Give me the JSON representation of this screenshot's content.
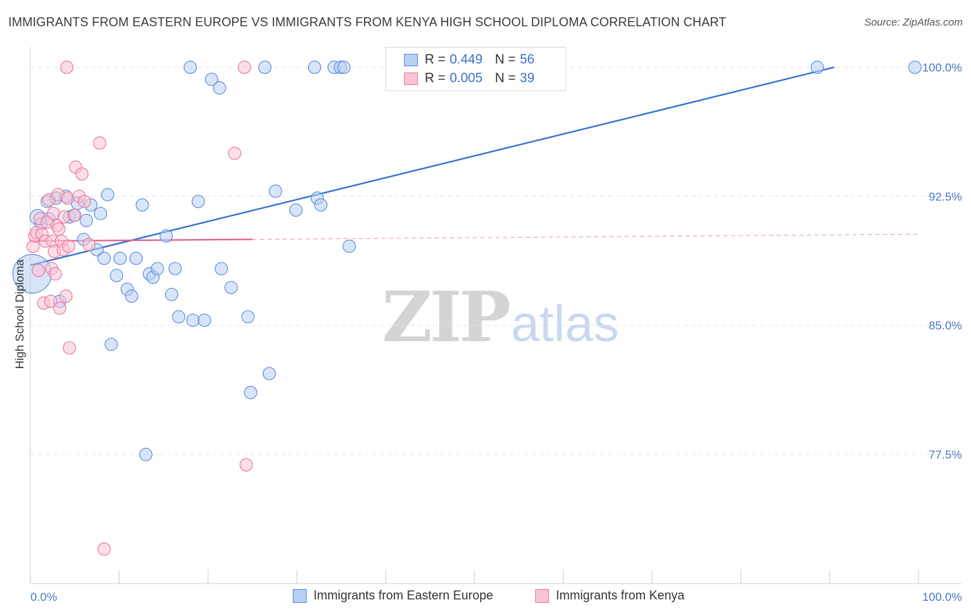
{
  "title": "IMMIGRANTS FROM EASTERN EUROPE VS IMMIGRANTS FROM KENYA HIGH SCHOOL DIPLOMA CORRELATION CHART",
  "source": "Source: ZipAtlas.com",
  "watermark": {
    "zip": "ZIP",
    "atlas": "atlas"
  },
  "legend": {
    "rows": [
      {
        "r_label": "R =",
        "r_value": "0.449",
        "n_label": "N =",
        "n_value": "56"
      },
      {
        "r_label": "R =",
        "r_value": "0.005",
        "n_label": "N =",
        "n_value": "39"
      }
    ]
  },
  "bottom_legend": [
    "Immigrants from Eastern Europe",
    "Immigrants from Kenya"
  ],
  "colors": {
    "blue_fill": "#b8d0f4",
    "blue_stroke": "#5a8ad8",
    "blue_line": "#3070d0",
    "pink_fill": "#f9c3d4",
    "pink_stroke": "#e6779b",
    "pink_line": "#e0668f",
    "tick_text": "#4a78c8",
    "grid": "#e4e4e4"
  },
  "chart_data": {
    "type": "scatter",
    "title": "IMMIGRANTS FROM EASTERN EUROPE VS IMMIGRANTS FROM KENYA HIGH SCHOOL DIPLOMA CORRELATION CHART",
    "xlabel": "",
    "ylabel": "High School Diploma",
    "xlim": [
      0,
      100
    ],
    "ylim": [
      70.0,
      100.7
    ],
    "x_tick_labels": [
      "0.0%",
      "100.0%"
    ],
    "y_ticks": [
      {
        "value": 100.0,
        "label": "100.0%"
      },
      {
        "value": 92.5,
        "label": "92.5%"
      },
      {
        "value": 85.0,
        "label": "85.0%"
      },
      {
        "value": 77.5,
        "label": "77.5%"
      }
    ],
    "series": [
      {
        "name": "Immigrants from Eastern Europe",
        "color": "blue",
        "trend": {
          "x1": 0,
          "y1": 88.5,
          "x2": 90.5,
          "y2": 100.0,
          "dashed_to": null
        },
        "points": [
          [
            0.2,
            88.0,
            28
          ],
          [
            0.8,
            91.3,
            11
          ],
          [
            1.2,
            90.9,
            9
          ],
          [
            1.9,
            92.2,
            9
          ],
          [
            2.1,
            91.2,
            9
          ],
          [
            2.9,
            92.4,
            9
          ],
          [
            3.3,
            86.4,
            9
          ],
          [
            4.0,
            92.5,
            9
          ],
          [
            4.4,
            91.3,
            9
          ],
          [
            4.9,
            91.4,
            9
          ],
          [
            5.3,
            92.1,
            9
          ],
          [
            6.0,
            90.0,
            9
          ],
          [
            6.3,
            91.1,
            9
          ],
          [
            6.8,
            92.0,
            9
          ],
          [
            7.5,
            89.4,
            9
          ],
          [
            7.9,
            91.5,
            9
          ],
          [
            8.3,
            88.9,
            9
          ],
          [
            8.7,
            92.6,
            9
          ],
          [
            9.1,
            83.9,
            9
          ],
          [
            9.7,
            87.9,
            9
          ],
          [
            10.1,
            88.9,
            9
          ],
          [
            10.9,
            87.1,
            9
          ],
          [
            11.4,
            86.7,
            9
          ],
          [
            11.9,
            88.9,
            9
          ],
          [
            12.6,
            92.0,
            9
          ],
          [
            13.0,
            77.5,
            9
          ],
          [
            13.4,
            88.0,
            9
          ],
          [
            13.8,
            87.8,
            9
          ],
          [
            14.3,
            88.3,
            9
          ],
          [
            15.3,
            90.2,
            9
          ],
          [
            15.9,
            86.8,
            9
          ],
          [
            16.3,
            88.3,
            9
          ],
          [
            16.7,
            85.5,
            9
          ],
          [
            18.0,
            100.0,
            9
          ],
          [
            18.3,
            85.3,
            9
          ],
          [
            18.9,
            92.2,
            9
          ],
          [
            19.6,
            85.3,
            9
          ],
          [
            20.4,
            99.3,
            9
          ],
          [
            21.3,
            98.8,
            9
          ],
          [
            21.5,
            88.3,
            9
          ],
          [
            22.6,
            87.2,
            9
          ],
          [
            24.5,
            85.5,
            9
          ],
          [
            24.8,
            81.1,
            9
          ],
          [
            26.4,
            100.0,
            9
          ],
          [
            27.6,
            92.8,
            9
          ],
          [
            26.9,
            82.2,
            9
          ],
          [
            29.9,
            91.7,
            9
          ],
          [
            32.0,
            100.0,
            9
          ],
          [
            32.3,
            92.4,
            9
          ],
          [
            32.7,
            92.0,
            9
          ],
          [
            34.2,
            100.0,
            9
          ],
          [
            34.9,
            100.0,
            9
          ],
          [
            35.3,
            100.0,
            9
          ],
          [
            35.9,
            89.6,
            9
          ],
          [
            88.6,
            100.0,
            9
          ],
          [
            99.6,
            100.0,
            9
          ]
        ]
      },
      {
        "name": "Immigrants from Kenya",
        "color": "pink",
        "trend": {
          "x1": 0,
          "y1": 89.9,
          "x2": 25.0,
          "y2": 90.0,
          "dashed_to": {
            "x": 100,
            "y": 90.3
          }
        },
        "points": [
          [
            0.3,
            89.6,
            9
          ],
          [
            0.5,
            90.2,
            9
          ],
          [
            0.7,
            90.4,
            9
          ],
          [
            0.9,
            88.2,
            9
          ],
          [
            1.1,
            91.2,
            9
          ],
          [
            1.3,
            90.3,
            9
          ],
          [
            1.5,
            86.3,
            9
          ],
          [
            1.7,
            89.9,
            9
          ],
          [
            1.9,
            91.0,
            9
          ],
          [
            2.1,
            92.3,
            9
          ],
          [
            2.3,
            86.4,
            9
          ],
          [
            2.4,
            88.3,
            9
          ],
          [
            2.5,
            89.9,
            9
          ],
          [
            2.6,
            91.5,
            9
          ],
          [
            2.7,
            89.3,
            9
          ],
          [
            2.8,
            88.0,
            9
          ],
          [
            3.0,
            90.8,
            9
          ],
          [
            3.1,
            92.6,
            9
          ],
          [
            3.2,
            90.6,
            9
          ],
          [
            3.3,
            86.0,
            9
          ],
          [
            3.5,
            89.9,
            9
          ],
          [
            3.7,
            89.4,
            9
          ],
          [
            3.8,
            91.3,
            9
          ],
          [
            4.0,
            86.7,
            9
          ],
          [
            4.2,
            92.4,
            9
          ],
          [
            4.3,
            89.6,
            9
          ],
          [
            4.4,
            83.7,
            9
          ],
          [
            4.1,
            100.0,
            9
          ],
          [
            5.0,
            91.4,
            9
          ],
          [
            5.1,
            94.2,
            9
          ],
          [
            5.5,
            92.5,
            9
          ],
          [
            5.8,
            93.8,
            9
          ],
          [
            6.1,
            92.2,
            9
          ],
          [
            6.6,
            89.7,
            9
          ],
          [
            7.8,
            95.6,
            9
          ],
          [
            8.3,
            72.0,
            9
          ],
          [
            23.0,
            95.0,
            9
          ],
          [
            24.1,
            100.0,
            9
          ],
          [
            24.3,
            76.9,
            9
          ]
        ]
      }
    ]
  }
}
